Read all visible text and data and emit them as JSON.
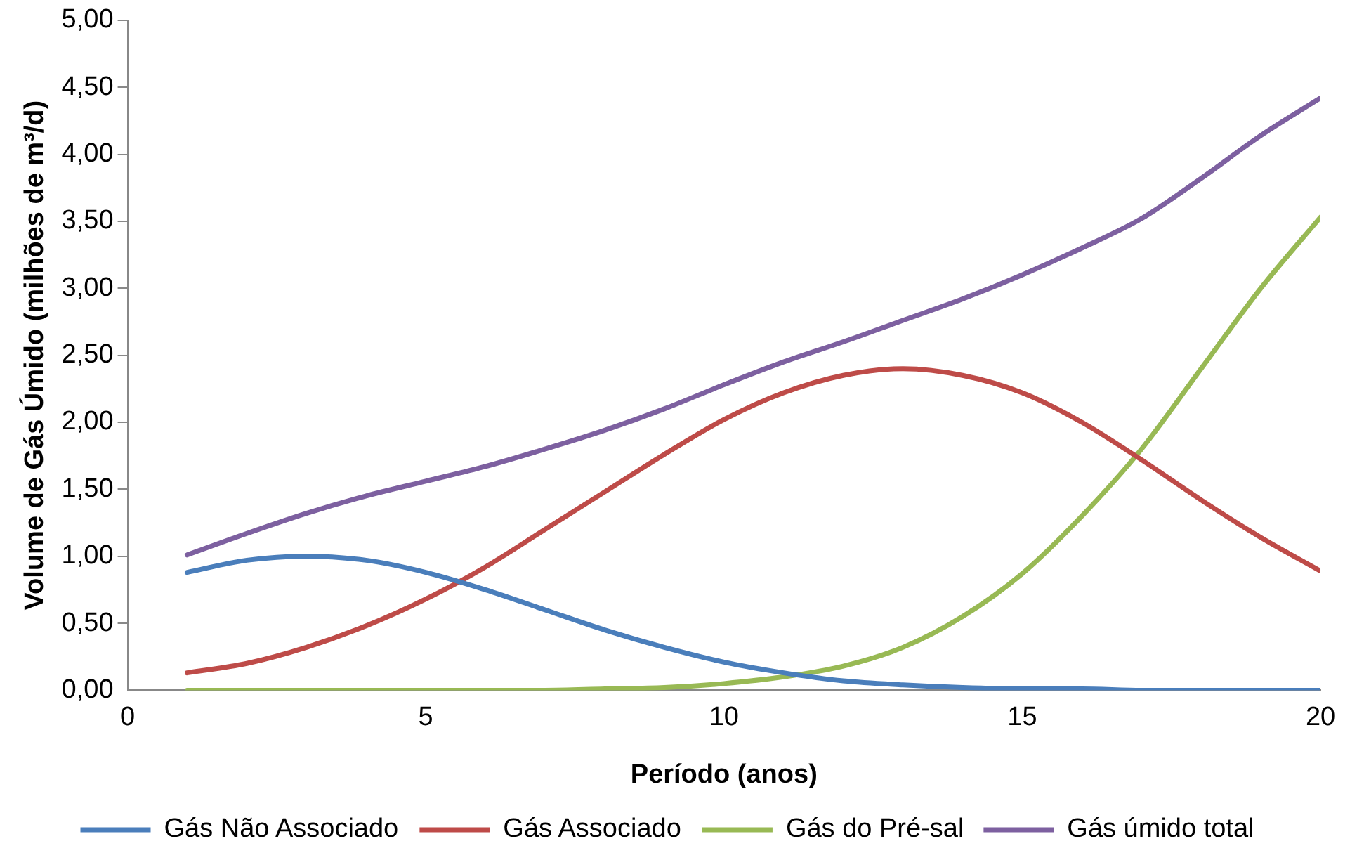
{
  "chart_data": {
    "type": "line",
    "xlabel": "Período (anos)",
    "ylabel": "Volume de Gás Úmido (milhões de m³/d)",
    "x": [
      1,
      2,
      3,
      4,
      5,
      6,
      7,
      8,
      9,
      10,
      11,
      12,
      13,
      14,
      15,
      16,
      17,
      18,
      19,
      20
    ],
    "series": [
      {
        "name": "Gás Não Associado",
        "color": "#4a7ebb",
        "values": [
          0.88,
          0.97,
          1.0,
          0.97,
          0.88,
          0.75,
          0.6,
          0.45,
          0.32,
          0.21,
          0.13,
          0.07,
          0.04,
          0.02,
          0.01,
          0.01,
          0,
          0,
          0,
          0
        ]
      },
      {
        "name": "Gás Associado",
        "color": "#be4b48",
        "values": [
          0.13,
          0.2,
          0.32,
          0.48,
          0.68,
          0.92,
          1.2,
          1.48,
          1.76,
          2.02,
          2.22,
          2.35,
          2.4,
          2.35,
          2.22,
          2.0,
          1.72,
          1.42,
          1.14,
          0.89
        ]
      },
      {
        "name": "Gás do Pré-sal",
        "color": "#98b954",
        "values": [
          0,
          0,
          0,
          0,
          0,
          0,
          0,
          0.01,
          0.02,
          0.05,
          0.1,
          0.18,
          0.32,
          0.55,
          0.87,
          1.3,
          1.8,
          2.4,
          3.0,
          3.53
        ]
      },
      {
        "name": "Gás úmido total",
        "color": "#7d60a0",
        "values": [
          1.01,
          1.17,
          1.32,
          1.45,
          1.56,
          1.67,
          1.8,
          1.94,
          2.1,
          2.28,
          2.45,
          2.6,
          2.76,
          2.92,
          3.1,
          3.3,
          3.52,
          3.82,
          4.14,
          4.42
        ]
      }
    ],
    "xlim": [
      0,
      20
    ],
    "xticks": [
      0,
      5,
      10,
      15,
      20
    ],
    "ylim": [
      0,
      5
    ],
    "yticks": [
      {
        "value": 0,
        "label": "0,00"
      },
      {
        "value": 0.5,
        "label": "0,50"
      },
      {
        "value": 1,
        "label": "1,00"
      },
      {
        "value": 1.5,
        "label": "1,50"
      },
      {
        "value": 2,
        "label": "2,00"
      },
      {
        "value": 2.5,
        "label": "2,50"
      },
      {
        "value": 3,
        "label": "3,00"
      },
      {
        "value": 3.5,
        "label": "3,50"
      },
      {
        "value": 4,
        "label": "4,00"
      },
      {
        "value": 4.5,
        "label": "4,50"
      },
      {
        "value": 5,
        "label": "5,00"
      }
    ],
    "grid": false,
    "legend": "bottom",
    "marker": "none",
    "line_style": "solid"
  }
}
